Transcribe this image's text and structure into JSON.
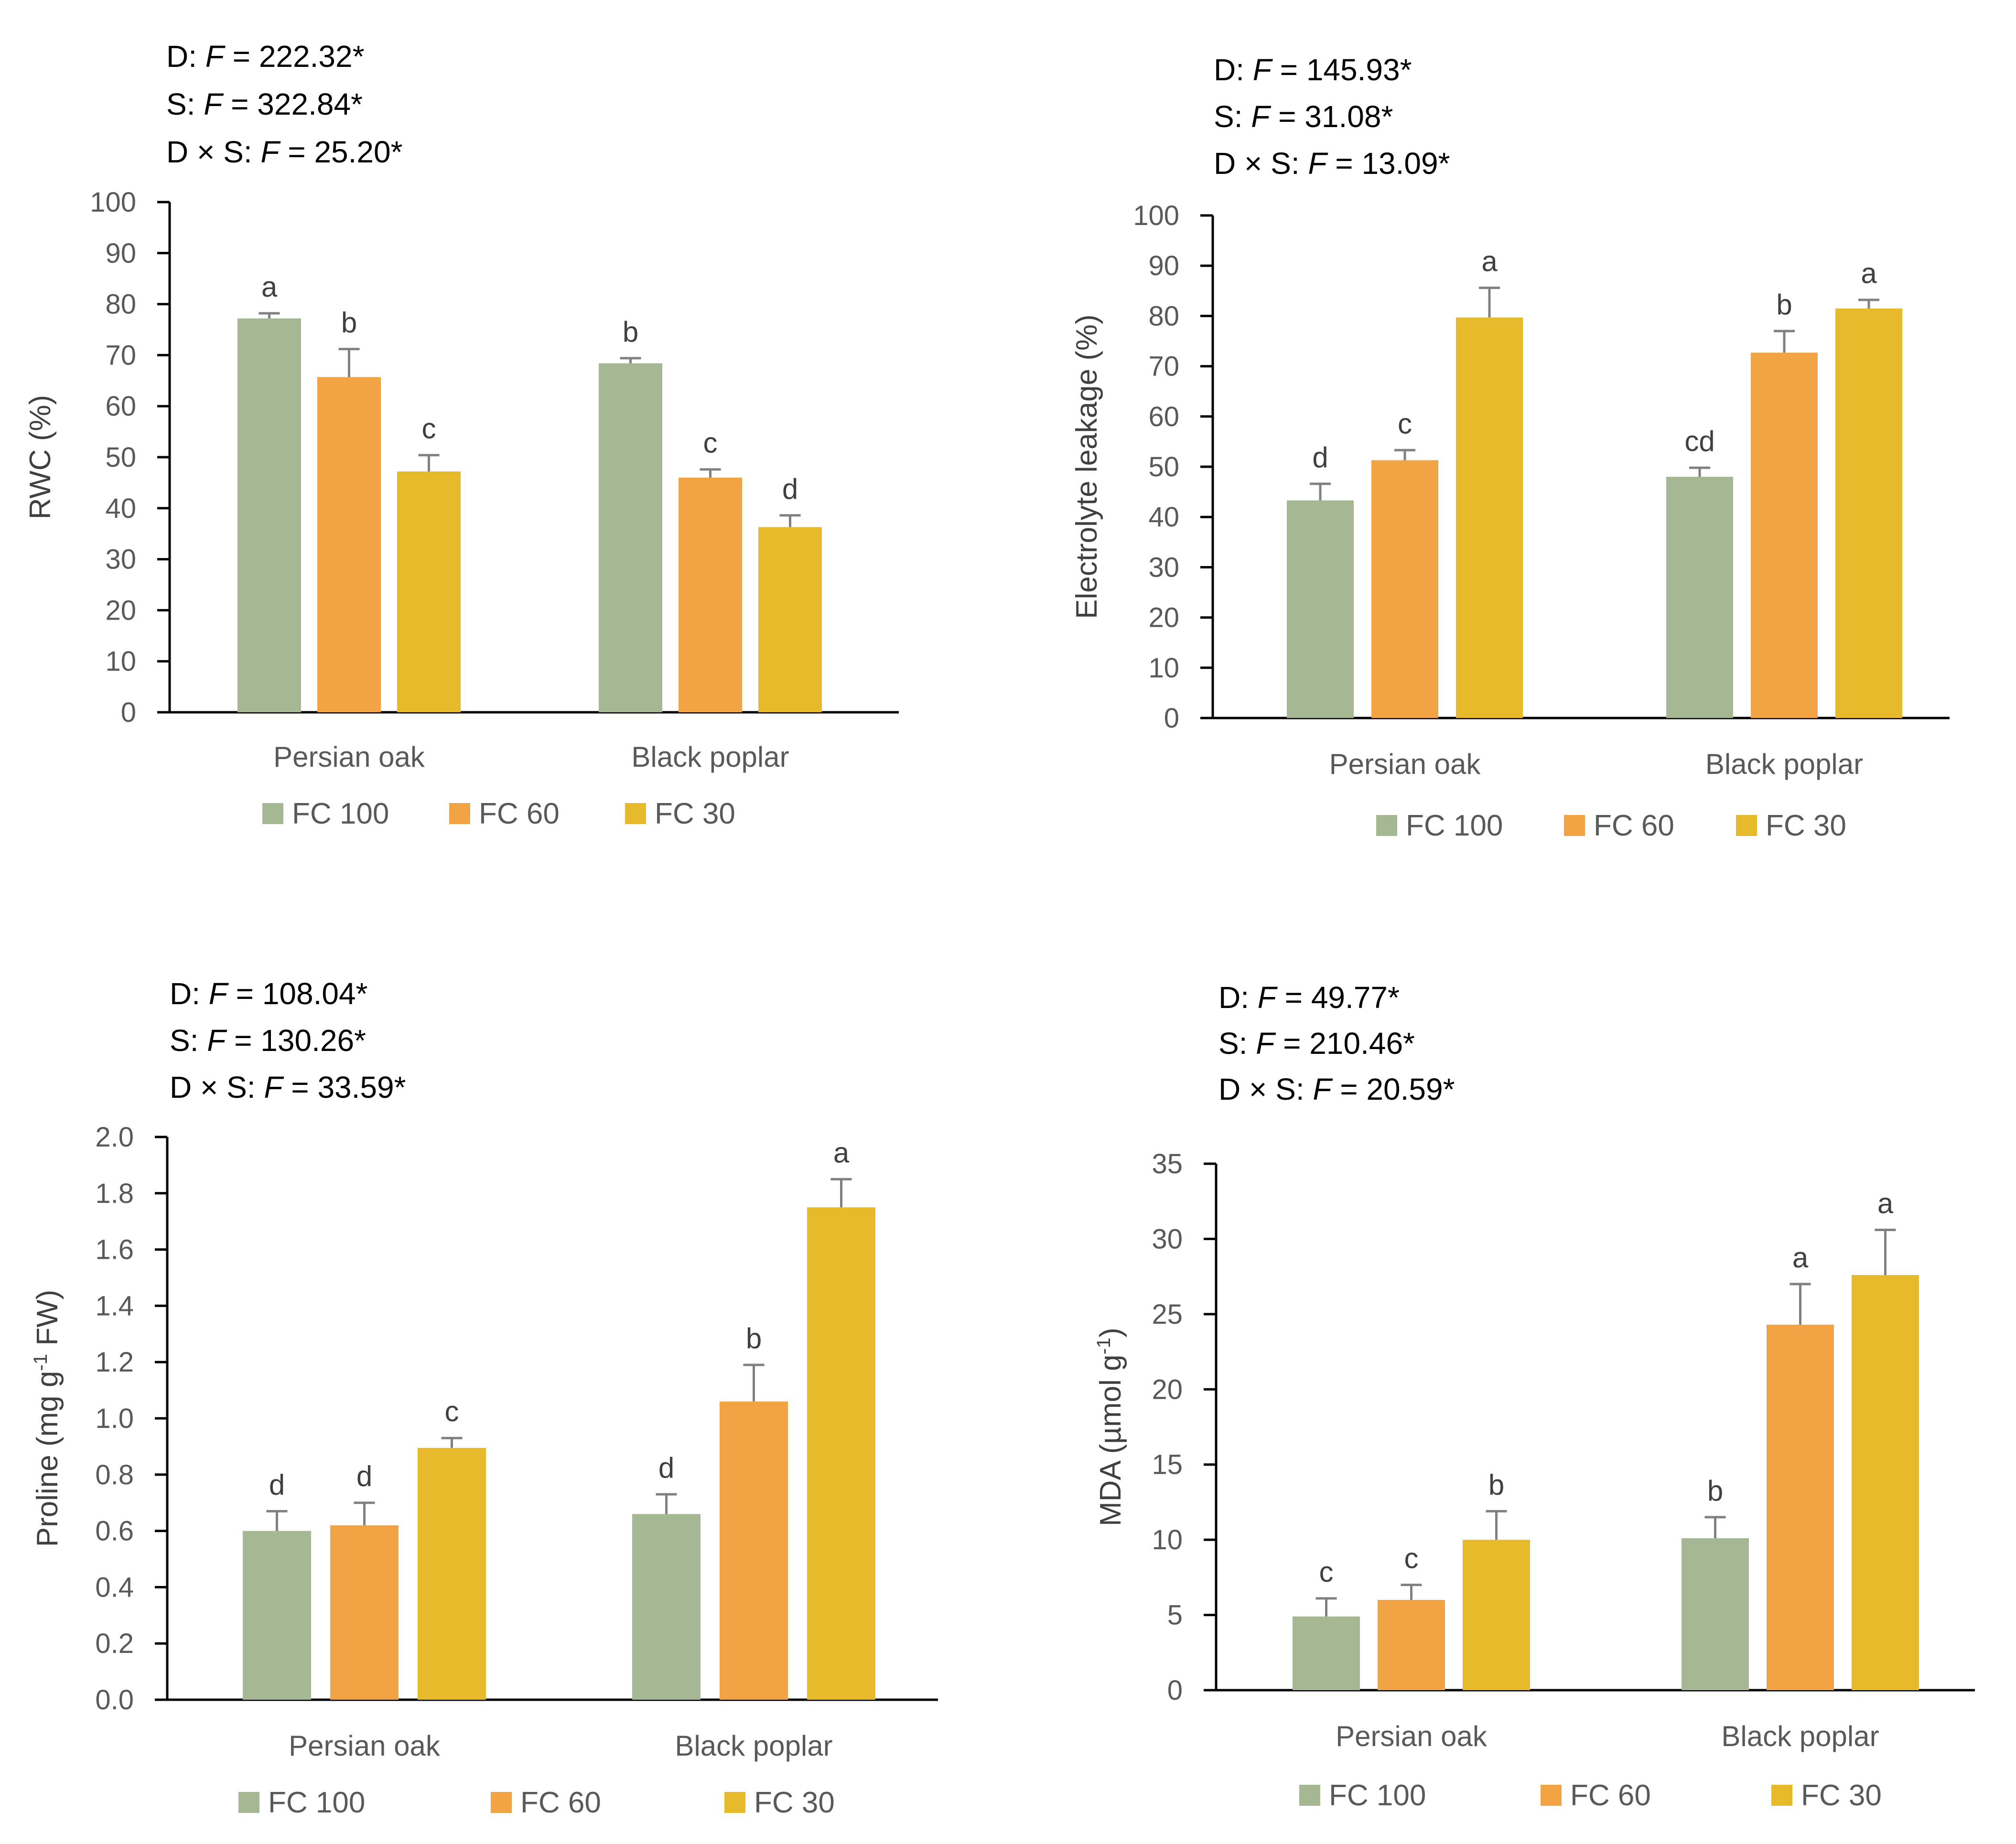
{
  "colors": {
    "FC 100": "#a6b893",
    "FC 60": "#f2a444",
    "FC 30": "#e6ba2a",
    "axis": "#000000",
    "tick_text": "#595959",
    "label_text": "#404040",
    "annotation_text": "#000000",
    "error_bar": "#808080"
  },
  "chart_data": [
    {
      "type": "bar",
      "id": "rwc",
      "stats": [
        {
          "prefix": "D: ",
          "var": "F",
          "value": " = 222.32*"
        },
        {
          "prefix": "S: ",
          "var": "F",
          "value": " = 322.84*"
        },
        {
          "prefix": "D × S: ",
          "var": "F",
          "value": " = 25.20*"
        }
      ],
      "ylabel_parts": [
        {
          "t": "RWC (%)"
        }
      ],
      "ylim": [
        0,
        100
      ],
      "yticks": [
        0,
        10,
        20,
        30,
        40,
        50,
        60,
        70,
        80,
        90,
        100
      ],
      "ytick_labels": [
        "0",
        "10",
        "20",
        "30",
        "40",
        "50",
        "60",
        "70",
        "80",
        "90",
        "100"
      ],
      "categories": [
        "Persian oak",
        "Black poplar"
      ],
      "series": [
        {
          "name": "FC 100",
          "values": [
            77.2,
            68.4
          ],
          "errors": [
            1.0,
            1.0
          ],
          "letters": [
            "a",
            "b"
          ]
        },
        {
          "name": "FC 60",
          "values": [
            65.7,
            46.0
          ],
          "errors": [
            5.5,
            1.6
          ],
          "letters": [
            "b",
            "c"
          ]
        },
        {
          "name": "FC 30",
          "values": [
            47.2,
            36.3
          ],
          "errors": [
            3.2,
            2.3
          ],
          "letters": [
            "c",
            "d"
          ]
        }
      ],
      "legend": [
        "FC 100",
        "FC 60",
        "FC 30"
      ]
    },
    {
      "type": "bar",
      "id": "electrolyte",
      "stats": [
        {
          "prefix": "D: ",
          "var": "F",
          "value": " = 145.93*"
        },
        {
          "prefix": "S: ",
          "var": "F",
          "value": " = 31.08*"
        },
        {
          "prefix": "D × S: ",
          "var": "F",
          "value": " = 13.09*"
        }
      ],
      "ylabel_parts": [
        {
          "t": "Electrolyte leakage (%)"
        }
      ],
      "ylim": [
        0,
        100
      ],
      "yticks": [
        0,
        10,
        20,
        30,
        40,
        50,
        60,
        70,
        80,
        90,
        100
      ],
      "ytick_labels": [
        "0",
        "10",
        "20",
        "30",
        "40",
        "50",
        "60",
        "70",
        "80",
        "90",
        "100"
      ],
      "categories": [
        "Persian oak",
        "Black poplar"
      ],
      "series": [
        {
          "name": "FC 100",
          "values": [
            43.3,
            48.0
          ],
          "errors": [
            3.3,
            1.8
          ],
          "letters": [
            "d",
            "cd"
          ]
        },
        {
          "name": "FC 60",
          "values": [
            51.3,
            72.7
          ],
          "errors": [
            2.0,
            4.3
          ],
          "letters": [
            "c",
            "b"
          ]
        },
        {
          "name": "FC 30",
          "values": [
            79.7,
            81.5
          ],
          "errors": [
            5.9,
            1.7
          ],
          "letters": [
            "a",
            "a"
          ]
        }
      ],
      "legend": [
        "FC 100",
        "FC 60",
        "FC 30"
      ]
    },
    {
      "type": "bar",
      "id": "proline",
      "stats": [
        {
          "prefix": "D: ",
          "var": "F",
          "value": " = 108.04*"
        },
        {
          "prefix": "S: ",
          "var": "F",
          "value": " = 130.26*"
        },
        {
          "prefix": "D × S: ",
          "var": "F",
          "value": " = 33.59*"
        }
      ],
      "ylabel_parts": [
        {
          "t": "Proline (mg g"
        },
        {
          "t": "-1",
          "sup": true
        },
        {
          "t": " FW)"
        }
      ],
      "ylim": [
        0,
        2.0
      ],
      "yticks": [
        0,
        0.2,
        0.4,
        0.6,
        0.8,
        1.0,
        1.2,
        1.4,
        1.6,
        1.8,
        2.0
      ],
      "ytick_labels": [
        "0.0",
        "0.2",
        "0.4",
        "0.6",
        "0.8",
        "1.0",
        "1.2",
        "1.4",
        "1.6",
        "1.8",
        "2.0"
      ],
      "categories": [
        "Persian oak",
        "Black poplar"
      ],
      "series": [
        {
          "name": "FC 100",
          "values": [
            0.6,
            0.66
          ],
          "errors": [
            0.07,
            0.07
          ],
          "letters": [
            "d",
            "d"
          ]
        },
        {
          "name": "FC 60",
          "values": [
            0.62,
            1.06
          ],
          "errors": [
            0.08,
            0.13
          ],
          "letters": [
            "d",
            "b"
          ]
        },
        {
          "name": "FC 30",
          "values": [
            0.895,
            1.75
          ],
          "errors": [
            0.035,
            0.1
          ],
          "letters": [
            "c",
            "a"
          ]
        }
      ],
      "legend": [
        "FC 100",
        "FC 60",
        "FC 30"
      ]
    },
    {
      "type": "bar",
      "id": "mda",
      "stats": [
        {
          "prefix": "D: ",
          "var": "F",
          "value": " = 49.77*"
        },
        {
          "prefix": "S: ",
          "var": "F",
          "value": " = 210.46*"
        },
        {
          "prefix": "D × S: ",
          "var": "F",
          "value": " = 20.59*"
        }
      ],
      "ylabel_parts": [
        {
          "t": "MDA (µmol g"
        },
        {
          "t": "-1",
          "sup": true
        },
        {
          "t": ")"
        }
      ],
      "ylim": [
        0,
        35
      ],
      "yticks": [
        0,
        5,
        10,
        15,
        20,
        25,
        30,
        35
      ],
      "ytick_labels": [
        "0",
        "5",
        "10",
        "15",
        "20",
        "25",
        "30",
        "35"
      ],
      "categories": [
        "Persian oak",
        "Black poplar"
      ],
      "series": [
        {
          "name": "FC 100",
          "values": [
            4.9,
            10.1
          ],
          "errors": [
            1.2,
            1.4
          ],
          "letters": [
            "c",
            "b"
          ]
        },
        {
          "name": "FC 60",
          "values": [
            6.0,
            24.3
          ],
          "errors": [
            1.0,
            2.7
          ],
          "letters": [
            "c",
            "a"
          ]
        },
        {
          "name": "FC 30",
          "values": [
            10.0,
            27.6
          ],
          "errors": [
            1.9,
            3.0
          ],
          "letters": [
            "b",
            "a"
          ]
        }
      ],
      "legend": [
        "FC 100",
        "FC 60",
        "FC 30"
      ]
    }
  ]
}
